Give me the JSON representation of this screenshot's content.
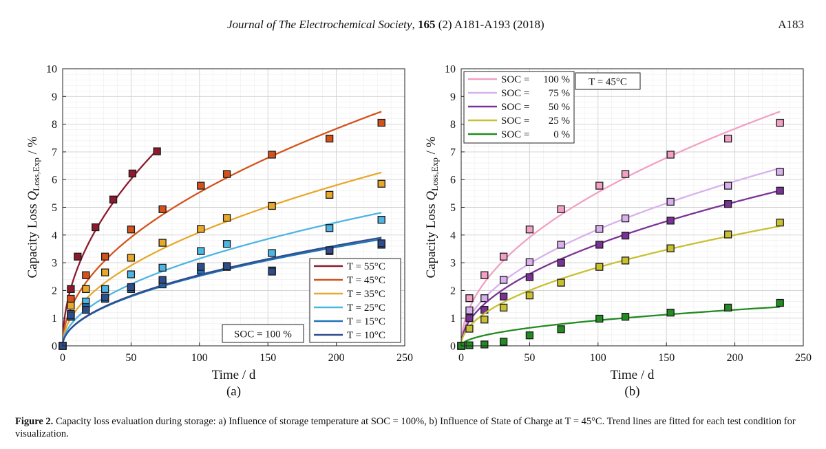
{
  "header": {
    "journal_name": "Journal of The Electrochemical Society",
    "volume": "165",
    "issue_pages": "(2) A181-A193 (2018)",
    "page_number": "A183"
  },
  "caption": {
    "label": "Figure 2.",
    "text": "Capacity loss evaluation during storage: a) Influence of storage temperature at SOC = 100%, b) Influence of State of Charge at T = 45°C. Trend lines are fitted for each test condition for visualization."
  },
  "chart_data": [
    {
      "type": "scatter",
      "panel_label": "(a)",
      "xlabel": "Time / d",
      "ylabel": "Capacity Loss Q_Loss,Exp / %",
      "xlim": [
        0,
        250
      ],
      "ylim": [
        0,
        10
      ],
      "xticks": [
        0,
        50,
        100,
        150,
        200,
        250
      ],
      "yticks": [
        0,
        1,
        2,
        3,
        4,
        5,
        6,
        7,
        8,
        9,
        10
      ],
      "grid": true,
      "legend_position": "bottom-right",
      "annotation": "SOC = 100 %",
      "series": [
        {
          "name": "T = 55°C",
          "color": "#8b1a2e",
          "x": [
            0,
            6,
            11,
            24,
            37,
            51,
            69
          ],
          "y": [
            0,
            2.05,
            3.22,
            4.28,
            5.28,
            6.22,
            7.02
          ],
          "fit_a": 0.851,
          "fit_xmax": 69
        },
        {
          "name": "T = 45°C",
          "color": "#d4521a",
          "x": [
            0,
            6,
            17,
            31,
            50,
            73,
            101,
            120,
            153,
            195,
            233
          ],
          "y": [
            0,
            1.7,
            2.55,
            3.22,
            4.2,
            4.93,
            5.78,
            6.2,
            6.9,
            7.48,
            8.05
          ],
          "fit_a": 0.554,
          "fit_xmax": 233
        },
        {
          "name": "T = 35°C",
          "color": "#e8a82a",
          "x": [
            0,
            6,
            17,
            31,
            50,
            73,
            101,
            120,
            153,
            195,
            233
          ],
          "y": [
            0,
            1.45,
            2.05,
            2.65,
            3.18,
            3.72,
            4.22,
            4.62,
            5.05,
            5.45,
            5.85
          ],
          "fit_a": 0.41,
          "fit_xmax": 233
        },
        {
          "name": "T = 25°C",
          "color": "#4cb5e3",
          "x": [
            0,
            6,
            17,
            31,
            50,
            73,
            101,
            120,
            153,
            195,
            233
          ],
          "y": [
            0,
            1.15,
            1.6,
            2.05,
            2.58,
            2.82,
            3.42,
            3.68,
            3.35,
            4.25,
            4.55
          ],
          "fit_a": 0.315,
          "fit_xmax": 233
        },
        {
          "name": "T = 15°C",
          "color": "#1f72b8",
          "x": [
            0,
            6,
            17,
            31,
            50,
            73,
            101,
            120,
            153,
            195,
            233
          ],
          "y": [
            0,
            1.05,
            1.4,
            1.7,
            2.05,
            2.22,
            2.72,
            2.85,
            2.72,
            3.42,
            3.65
          ],
          "fit_a": 0.252,
          "fit_xmax": 233
        },
        {
          "name": "T = 10°C",
          "color": "#2f4d8c",
          "x": [
            0,
            6,
            17,
            31,
            50,
            73,
            101,
            120,
            153,
            195,
            233
          ],
          "y": [
            0,
            1.1,
            1.3,
            1.75,
            2.12,
            2.38,
            2.85,
            2.88,
            2.68,
            3.45,
            3.7
          ],
          "fit_a": 0.256,
          "fit_xmax": 233
        }
      ]
    },
    {
      "type": "scatter",
      "panel_label": "(b)",
      "xlabel": "Time / d",
      "ylabel": "Capacity Loss Q_Loss,Exp / %",
      "xlim": [
        0,
        250
      ],
      "ylim": [
        0,
        10
      ],
      "xticks": [
        0,
        50,
        100,
        150,
        200,
        250
      ],
      "yticks": [
        0,
        1,
        2,
        3,
        4,
        5,
        6,
        7,
        8,
        9,
        10
      ],
      "grid": true,
      "legend_position": "top-left",
      "annotation": "T = 45°C",
      "series": [
        {
          "name": "SOC = 100 %",
          "name_lhs": "SOC =",
          "name_rhs": "100 %",
          "color": "#f2a0c4",
          "x": [
            0,
            6,
            17,
            31,
            50,
            73,
            101,
            120,
            153,
            195,
            233
          ],
          "y": [
            0,
            1.72,
            2.55,
            3.22,
            4.2,
            4.93,
            5.78,
            6.2,
            6.9,
            7.48,
            8.05
          ],
          "fit_a": 0.554,
          "fit_xmax": 233
        },
        {
          "name": "SOC = 75 %",
          "name_lhs": "SOC =",
          "name_rhs": "75 %",
          "color": "#d9b0ee",
          "x": [
            0,
            6,
            17,
            31,
            50,
            73,
            101,
            120,
            153,
            195,
            233
          ],
          "y": [
            0,
            1.28,
            1.72,
            2.38,
            3.02,
            3.65,
            4.22,
            4.6,
            5.2,
            5.78,
            6.28
          ],
          "fit_a": 0.42,
          "fit_xmax": 233
        },
        {
          "name": "SOC = 50 %",
          "name_lhs": "SOC =",
          "name_rhs": "50 %",
          "color": "#7a3296",
          "x": [
            0,
            6,
            17,
            31,
            50,
            73,
            101,
            120,
            153,
            195,
            233
          ],
          "y": [
            0,
            1.0,
            1.3,
            1.78,
            2.48,
            3.0,
            3.65,
            3.98,
            4.52,
            5.12,
            5.6
          ],
          "fit_a": 0.367,
          "fit_xmax": 233
        },
        {
          "name": "SOC = 25 %",
          "name_lhs": "SOC =",
          "name_rhs": "25 %",
          "color": "#c8c030",
          "x": [
            0,
            6,
            17,
            31,
            50,
            73,
            101,
            120,
            153,
            195,
            233
          ],
          "y": [
            0,
            0.62,
            0.95,
            1.38,
            1.82,
            2.28,
            2.85,
            3.08,
            3.52,
            4.02,
            4.45
          ],
          "fit_a": 0.283,
          "fit_xmax": 233
        },
        {
          "name": "SOC = 0 %",
          "name_lhs": "SOC =",
          "name_rhs": "0 %",
          "color": "#228b22",
          "x": [
            0,
            6,
            17,
            31,
            50,
            73,
            101,
            120,
            153,
            195,
            233
          ],
          "y": [
            0,
            0.02,
            0.05,
            0.15,
            0.38,
            0.6,
            0.98,
            1.05,
            1.2,
            1.38,
            1.55
          ],
          "fit_a": 0.092,
          "fit_xmax": 233
        }
      ]
    }
  ]
}
